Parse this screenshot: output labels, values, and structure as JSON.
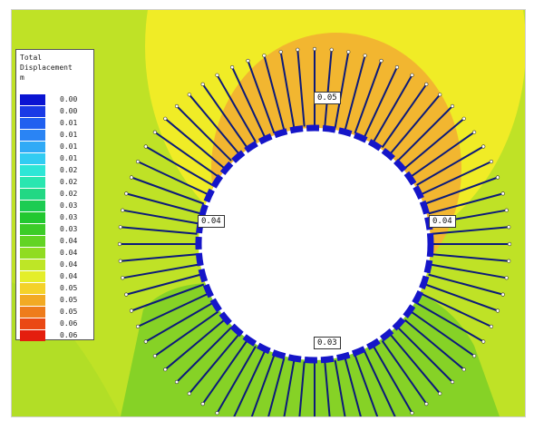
{
  "legend": {
    "title": [
      "Total",
      "Displacement",
      "m"
    ],
    "entries": [
      {
        "value": "0.00",
        "color": "#0a14d2"
      },
      {
        "value": "0.00",
        "color": "#1a3be6"
      },
      {
        "value": "0.01",
        "color": "#2060f0"
      },
      {
        "value": "0.01",
        "color": "#2a84f4"
      },
      {
        "value": "0.01",
        "color": "#30aaf6"
      },
      {
        "value": "0.01",
        "color": "#32ccf2"
      },
      {
        "value": "0.02",
        "color": "#2ee6d6"
      },
      {
        "value": "0.02",
        "color": "#2ae6b0"
      },
      {
        "value": "0.02",
        "color": "#22d884"
      },
      {
        "value": "0.03",
        "color": "#1ccc52"
      },
      {
        "value": "0.03",
        "color": "#22c830"
      },
      {
        "value": "0.03",
        "color": "#3ccc28"
      },
      {
        "value": "0.04",
        "color": "#62d424"
      },
      {
        "value": "0.04",
        "color": "#90dc22"
      },
      {
        "value": "0.04",
        "color": "#bee626"
      },
      {
        "value": "0.04",
        "color": "#e4ee2a"
      },
      {
        "value": "0.05",
        "color": "#f4d22a"
      },
      {
        "value": "0.05",
        "color": "#f2aa24"
      },
      {
        "value": "0.05",
        "color": "#ee7c1c"
      },
      {
        "value": "0.06",
        "color": "#ea4814"
      },
      {
        "value": "0.06",
        "color": "#e41e0e"
      }
    ]
  },
  "field_colors": {
    "background": "#bfe226",
    "crown_yellow": "#f0ec26",
    "crown_orange": "#f2b630",
    "lower_green": "#86d226",
    "lining": "#1515c8",
    "bolt": "#0c1a7a",
    "bolt_end": "#ffffff"
  },
  "contour_labels": {
    "top": "0.05",
    "left": "0.04",
    "right": "0.04",
    "bottom": "0.03"
  },
  "bolts": {
    "count": 72
  }
}
